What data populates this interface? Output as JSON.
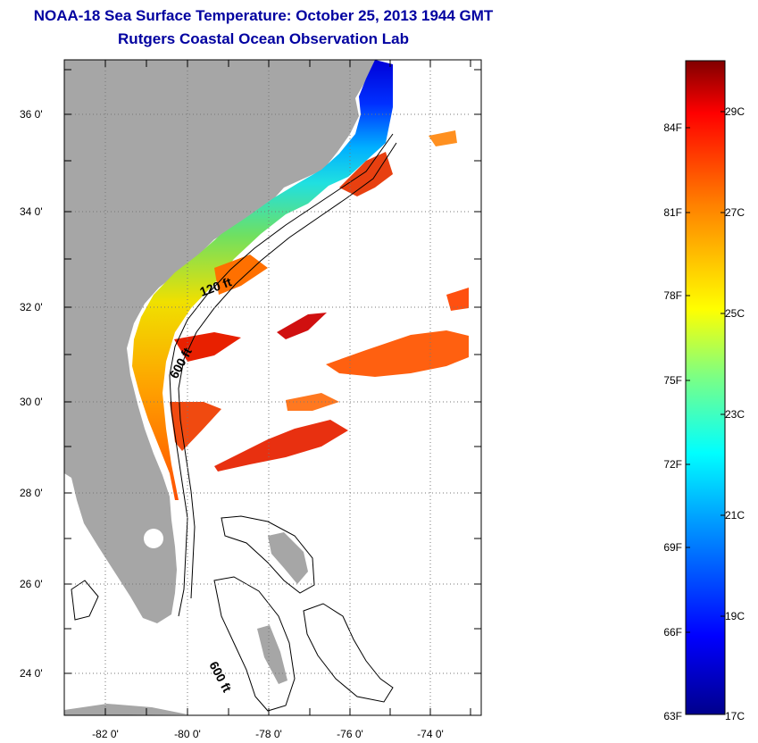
{
  "title_line1": "NOAA-18 Sea Surface Temperature:  October 25, 2013 1944 GMT",
  "title_line2": "Rutgers Coastal Ocean Observation Lab",
  "lat_labels": [
    "36 0'",
    "34 0'",
    "32 0'",
    "30 0'",
    "28 0'",
    "26 0'",
    "24 0'"
  ],
  "lon_labels": [
    "-82 0'",
    "-80 0'",
    "-78 0'",
    "-76 0'",
    "-74 0'"
  ],
  "isobath_labels": [
    "120 ft",
    "600 ft",
    "600 ft"
  ],
  "colorbar": {
    "fahrenheit_labels": [
      "84F",
      "81F",
      "78F",
      "75F",
      "72F",
      "69F",
      "66F",
      "63F"
    ],
    "celsius_labels": [
      "29C",
      "27C",
      "25C",
      "23C",
      "21C",
      "19C",
      "17C"
    ]
  },
  "colors": {
    "land": "#a6a6a6",
    "title": "#0000a0",
    "sst_cold": "#0000c8",
    "sst_warm": "#e00000"
  }
}
